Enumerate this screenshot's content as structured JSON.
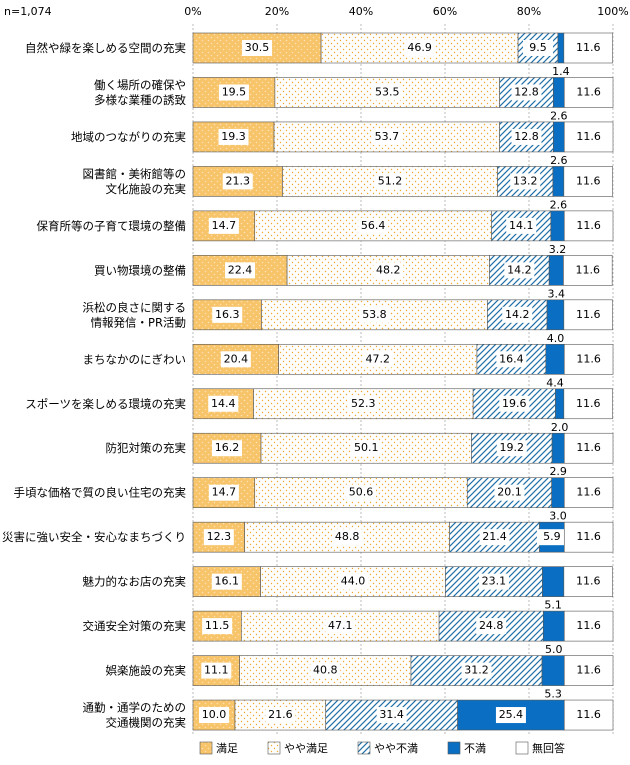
{
  "chart_data": {
    "type": "stacked-bar-horizontal",
    "note": "n=1,074",
    "categories": [
      "自然や緑を楽しめる空間の充実",
      "働く場所の確保や\n多様な業種の誘致",
      "地域のつながりの充実",
      "図書館・美術館等の\n文化施設の充実",
      "保育所等の子育て環境の整備",
      "買い物環境の整備",
      "浜松の良さに関する\n情報発信・PR活動",
      "まちなかのにぎわい",
      "スポーツを楽しめる環境の充実",
      "防犯対策の充実",
      "手頃な価格で質の良い住宅の充実",
      "災害に強い安全・安心なまちづくり",
      "魅力的なお店の充実",
      "交通安全対策の充実",
      "娯楽施設の充実",
      "通勤・通学のための\n交通機関の充実"
    ],
    "series": [
      {
        "name": "満足",
        "color": "#f7c46a",
        "pattern": "dots",
        "values": [
          30.5,
          19.5,
          19.3,
          21.3,
          14.7,
          22.4,
          16.3,
          20.4,
          14.4,
          16.2,
          14.7,
          12.3,
          16.1,
          11.5,
          11.1,
          10.0
        ],
        "value_labels": [
          "30.5",
          "19.5",
          "19.3",
          "21.3",
          "14.7",
          "22.4",
          "16.3",
          "20.4",
          "14.4",
          "16.2",
          "14.7",
          "12.3",
          "16.1",
          "11.5",
          "11.1",
          "10.0"
        ]
      },
      {
        "name": "やや満足",
        "color": "#f0a830",
        "pattern": "light-dots",
        "values": [
          46.9,
          53.5,
          53.7,
          51.2,
          56.4,
          48.2,
          53.8,
          47.2,
          52.3,
          50.1,
          50.6,
          48.8,
          44.0,
          47.1,
          40.8,
          21.6
        ],
        "value_labels": [
          "46.9",
          "53.5",
          "53.7",
          "51.2",
          "56.4",
          "48.2",
          "53.8",
          "47.2",
          "52.3",
          "50.1",
          "50.6",
          "48.8",
          "44.0",
          "47.1",
          "40.8",
          "21.6"
        ]
      },
      {
        "name": "やや不満",
        "color": "#1f6fa8",
        "pattern": "hatch",
        "values": [
          9.5,
          12.8,
          12.8,
          13.2,
          14.1,
          14.2,
          14.2,
          16.4,
          19.6,
          19.2,
          20.1,
          21.4,
          23.1,
          24.8,
          31.2,
          31.4
        ]
      },
      {
        "name": "不満",
        "color": "#0a6fc2",
        "pattern": "solid",
        "values": [
          1.4,
          2.6,
          2.6,
          2.6,
          3.2,
          3.4,
          4.0,
          4.4,
          2.0,
          2.9,
          3.0,
          5.9,
          5.1,
          5.0,
          5.3,
          25.4
        ],
        "value_labels": [
          "1.4",
          "2.6",
          "2.6",
          "2.6",
          "3.2",
          "3.4",
          "4.0",
          "4.4",
          "2.0",
          "2.9",
          "3.0",
          "5.9",
          "5.1",
          "5.0",
          "5.3",
          "25.4"
        ]
      },
      {
        "name": "無回答",
        "color": "#ffffff",
        "pattern": "none",
        "values": [
          11.6,
          11.6,
          11.6,
          11.6,
          11.6,
          11.6,
          11.6,
          11.6,
          11.6,
          11.6,
          11.6,
          11.6,
          11.6,
          11.6,
          11.6,
          11.6
        ]
      }
    ],
    "xlim": [
      0,
      100
    ],
    "xticks": [
      {
        "value": 0,
        "label": "0%"
      },
      {
        "value": 20,
        "label": "20%"
      },
      {
        "value": 40,
        "label": "40%"
      },
      {
        "value": 60,
        "label": "60%"
      },
      {
        "value": 80,
        "label": "80%"
      },
      {
        "value": 100,
        "label": "100%"
      }
    ],
    "grid": true,
    "legend": "bottom"
  }
}
